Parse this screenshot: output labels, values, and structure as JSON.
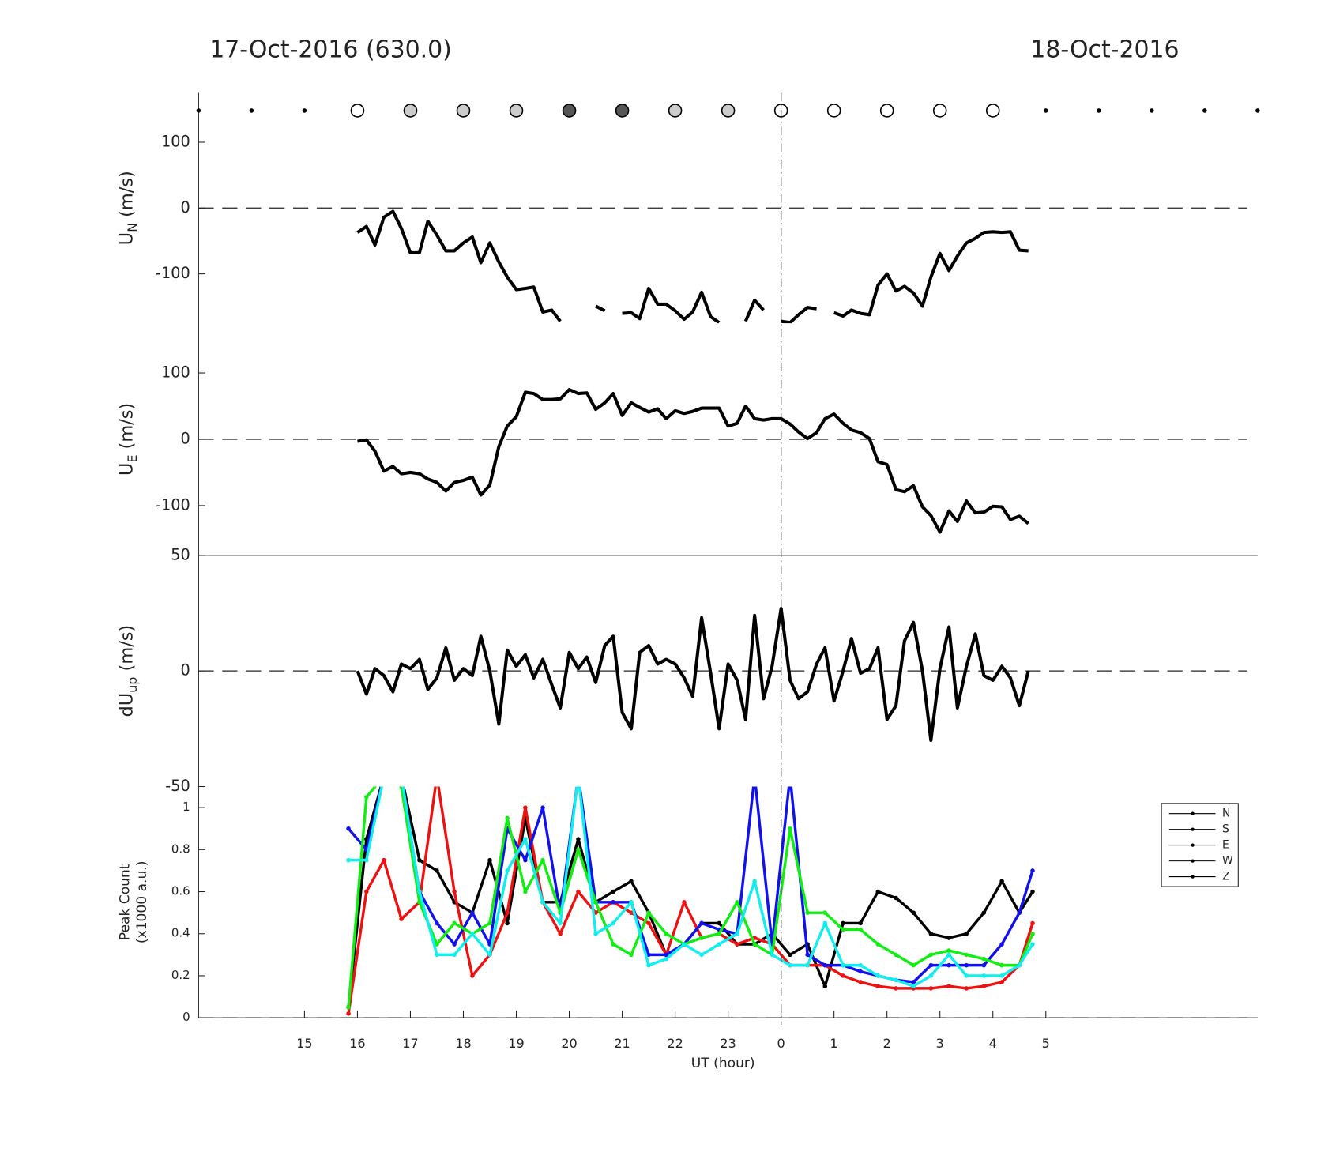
{
  "chart_data": [
    {
      "type": "line",
      "title": "17-Oct-2016 (630.0)",
      "title_right": "18-Oct-2016",
      "ylabel": "U",
      "ylabel_sub": "N",
      "ylabel_unit": " (m/s)",
      "ylim": [
        -175,
        175
      ],
      "yticks": [
        -100,
        0,
        100
      ],
      "zero_line": true,
      "sky": {
        "x": [
          -11,
          -10,
          -9,
          -8,
          -7,
          -6,
          -5,
          -4,
          -3,
          -2,
          -1,
          0,
          1,
          2,
          3,
          4,
          5,
          6,
          7,
          8,
          9
        ],
        "kind": [
          "dot",
          "dot",
          "dot",
          "open",
          "light",
          "light",
          "light",
          "dark",
          "dark",
          "light",
          "light",
          "open",
          "open",
          "open",
          "open",
          "open",
          "dot",
          "dot",
          "dot",
          "dot",
          "dot"
        ]
      },
      "x": [
        -8,
        -7.83,
        -7.67,
        -7.5,
        -7.33,
        -7.17,
        -7,
        -6.83,
        -6.67,
        -6.5,
        -6.33,
        -6.17,
        -6,
        -5.83,
        -5.67,
        -5.5,
        -5.33,
        -5.17,
        -5,
        -4.83,
        -4.67,
        -4.5,
        -4.33,
        -4.17,
        -4,
        -3.83,
        -3.67,
        -3.5,
        -3.33,
        -3.17,
        -3,
        -2.83,
        -2.67,
        -2.5,
        -2.33,
        -2.17,
        -2,
        -1.83,
        -1.67,
        -1.5,
        -1.33,
        -1.17,
        -1,
        -0.83,
        -0.67,
        -0.5,
        -0.33,
        -0.17,
        0,
        0.17,
        0.33,
        0.5,
        0.67,
        0.83,
        1,
        1.17,
        1.33,
        1.5,
        1.67,
        1.83,
        2,
        2.17,
        2.33,
        2.5,
        2.67,
        2.83,
        3,
        3.17,
        3.33,
        3.5,
        3.67,
        3.83,
        4,
        4.17,
        4.33,
        4.5,
        4.67
      ],
      "series": [
        {
          "color": "#000000",
          "values": [
            -37,
            -28,
            -56,
            -14,
            -5,
            -31,
            -68,
            -68,
            -20,
            -41,
            -65,
            -65,
            -53,
            -44,
            -83,
            -53,
            -82,
            -105,
            -124,
            -122,
            -120,
            -158,
            -155,
            -172,
            null,
            null,
            null,
            -149,
            -156,
            null,
            -160,
            -159,
            -168,
            -122,
            -146,
            -146,
            -156,
            -169,
            -158,
            -128,
            -165,
            -174,
            null,
            null,
            -172,
            -140,
            -155,
            null,
            -172,
            -174,
            -162,
            -151,
            -153,
            null,
            -159,
            -164,
            -155,
            -160,
            -162,
            -117,
            -100,
            -126,
            -119,
            -129,
            -149,
            -105,
            -69,
            -95,
            -73,
            -53,
            -46,
            -37,
            -36,
            -37,
            -36,
            -64,
            -65
          ]
        }
      ]
    },
    {
      "type": "line",
      "ylabel": "U",
      "ylabel_sub": "E",
      "ylabel_unit": " (m/s)",
      "ylim": [
        -175,
        175
      ],
      "yticks": [
        -100,
        0,
        100
      ],
      "zero_line": true,
      "x": [
        -8,
        -7.83,
        -7.67,
        -7.5,
        -7.33,
        -7.17,
        -7,
        -6.83,
        -6.67,
        -6.5,
        -6.33,
        -6.17,
        -6,
        -5.83,
        -5.67,
        -5.5,
        -5.33,
        -5.17,
        -5,
        -4.83,
        -4.67,
        -4.5,
        -4.33,
        -4.17,
        -4,
        -3.83,
        -3.67,
        -3.5,
        -3.33,
        -3.17,
        -3,
        -2.83,
        -2.67,
        -2.5,
        -2.33,
        -2.17,
        -2,
        -1.83,
        -1.67,
        -1.5,
        -1.33,
        -1.17,
        -1,
        -0.83,
        -0.67,
        -0.5,
        -0.33,
        -0.17,
        0,
        0.17,
        0.33,
        0.5,
        0.67,
        0.83,
        1,
        1.17,
        1.33,
        1.5,
        1.67,
        1.83,
        2,
        2.17,
        2.33,
        2.5,
        2.67,
        2.83,
        3,
        3.17,
        3.33,
        3.5,
        3.67,
        3.83,
        4,
        4.17,
        4.33,
        4.5,
        4.67
      ],
      "series": [
        {
          "color": "#000000",
          "values": [
            -3,
            -1,
            -18,
            -48,
            -41,
            -52,
            -50,
            -52,
            -60,
            -65,
            -78,
            -65,
            -62,
            -57,
            -84,
            -69,
            -11,
            20,
            34,
            71,
            69,
            60,
            60,
            61,
            75,
            69,
            70,
            45,
            55,
            69,
            36,
            55,
            48,
            41,
            46,
            31,
            43,
            39,
            42,
            47,
            47,
            47,
            20,
            24,
            50,
            31,
            29,
            31,
            31,
            23,
            11,
            1,
            10,
            31,
            38,
            24,
            14,
            10,
            1,
            -34,
            -38,
            -76,
            -79,
            -70,
            -102,
            -115,
            -140,
            -108,
            -124,
            -93,
            -111,
            -110,
            -101,
            -102,
            -121,
            -116,
            -127
          ]
        }
      ]
    },
    {
      "type": "line",
      "ylabel": "dU",
      "ylabel_sub": "up",
      "ylabel_unit": " (m/s)",
      "ylim": [
        -50,
        50
      ],
      "yticks": [
        -50,
        0,
        50
      ],
      "zero_line": true,
      "x": [
        -8,
        -7.83,
        -7.67,
        -7.5,
        -7.33,
        -7.17,
        -7,
        -6.83,
        -6.67,
        -6.5,
        -6.33,
        -6.17,
        -6,
        -5.83,
        -5.67,
        -5.5,
        -5.33,
        -5.17,
        -5,
        -4.83,
        -4.67,
        -4.5,
        -4.33,
        -4.17,
        -4,
        -3.83,
        -3.67,
        -3.5,
        -3.33,
        -3.17,
        -3,
        -2.83,
        -2.67,
        -2.5,
        -2.33,
        -2.17,
        -2,
        -1.83,
        -1.67,
        -1.5,
        -1.33,
        -1.17,
        -1,
        -0.83,
        -0.67,
        -0.5,
        -0.33,
        -0.17,
        0,
        0.17,
        0.33,
        0.5,
        0.67,
        0.83,
        1,
        1.17,
        1.33,
        1.5,
        1.67,
        1.83,
        2,
        2.17,
        2.33,
        2.5,
        2.67,
        2.83,
        3,
        3.17,
        3.33,
        3.5,
        3.67,
        3.83,
        4,
        4.17,
        4.33,
        4.5,
        4.67
      ],
      "series": [
        {
          "color": "#000000",
          "values": [
            0,
            -10,
            1,
            -2,
            -9,
            3,
            1,
            5,
            -8,
            -3,
            10,
            -4,
            1,
            -2,
            15,
            0,
            -23,
            9,
            2,
            7,
            -3,
            5,
            -6,
            -16,
            8,
            1,
            6,
            -5,
            11,
            15,
            -18,
            -25,
            8,
            11,
            3,
            5,
            3,
            -3,
            -11,
            23,
            -1,
            -25,
            3,
            -4,
            -21,
            24,
            -12,
            2,
            27,
            -4,
            -12,
            -9,
            3,
            10,
            -13,
            0,
            14,
            -1,
            1,
            10,
            -21,
            -15,
            13,
            21,
            0,
            -30,
            1,
            19,
            -16,
            2,
            16,
            -2,
            -4,
            2,
            -3,
            -15,
            0
          ]
        }
      ]
    },
    {
      "type": "line",
      "ylabel": "Peak Count",
      "ylabel2": "(x1000 a.u.)",
      "ylim": [
        0,
        1.1
      ],
      "yticks": [
        0,
        0.2,
        0.4,
        0.6,
        0.8,
        1
      ],
      "zero_line": true,
      "point_markers": true,
      "xlabel": "UT (hour)",
      "xlim": [
        -11,
        9
      ],
      "xticks": [
        {
          "value": -9,
          "label": "15"
        },
        {
          "value": -8,
          "label": "16"
        },
        {
          "value": -7,
          "label": "17"
        },
        {
          "value": -6,
          "label": "18"
        },
        {
          "value": -5,
          "label": "19"
        },
        {
          "value": -4,
          "label": "20"
        },
        {
          "value": -3,
          "label": "21"
        },
        {
          "value": -2,
          "label": "22"
        },
        {
          "value": -1,
          "label": "23"
        },
        0,
        1,
        2,
        3,
        4,
        5
      ],
      "vline_x": 0,
      "legend": "upper right",
      "legend_line_color": "#000000",
      "x": [
        -8.17,
        -7.83,
        -7.5,
        -7.17,
        -6.83,
        -6.5,
        -6.17,
        -5.83,
        -5.5,
        -5.17,
        -4.83,
        -4.5,
        -4.17,
        -3.83,
        -3.5,
        -3.17,
        -2.83,
        -2.5,
        -2.17,
        -1.83,
        -1.5,
        -1.17,
        -0.83,
        -0.5,
        -0.17,
        0.17,
        0.5,
        0.83,
        1.17,
        1.5,
        1.83,
        2.17,
        2.5,
        2.83,
        3.17,
        3.5,
        3.83,
        4.17,
        4.5,
        4.75
      ],
      "series": [
        {
          "name": "N",
          "color": "#000000",
          "values": [
            0.05,
            0.85,
            1.15,
            1.15,
            0.75,
            0.7,
            0.55,
            0.5,
            0.75,
            0.45,
            0.95,
            0.55,
            0.55,
            0.85,
            0.55,
            0.6,
            0.65,
            0.5,
            0.3,
            0.35,
            0.45,
            0.45,
            0.35,
            0.35,
            0.4,
            0.3,
            0.35,
            0.15,
            0.45,
            0.45,
            0.6,
            0.57,
            0.5,
            0.4,
            0.38,
            0.4,
            0.5,
            0.65,
            0.5,
            0.6
          ]
        },
        {
          "name": "S",
          "color": "#ee1111",
          "values": [
            0.02,
            0.6,
            0.75,
            0.47,
            0.55,
            1.15,
            0.6,
            0.2,
            0.3,
            0.5,
            1.0,
            0.55,
            0.4,
            0.6,
            0.5,
            0.55,
            0.5,
            0.45,
            0.3,
            0.55,
            0.38,
            0.4,
            0.35,
            0.38,
            0.35,
            0.25,
            0.25,
            0.25,
            0.2,
            0.17,
            0.15,
            0.14,
            0.14,
            0.14,
            0.15,
            0.14,
            0.15,
            0.17,
            0.25,
            0.45
          ]
        },
        {
          "name": "E",
          "color": "#1111ee",
          "values": [
            0.9,
            0.8,
            1.15,
            1.15,
            0.6,
            0.45,
            0.35,
            0.5,
            0.35,
            0.9,
            0.75,
            1.0,
            0.5,
            1.15,
            0.55,
            0.55,
            0.55,
            0.3,
            0.3,
            0.35,
            0.45,
            0.42,
            0.4,
            1.15,
            0.35,
            1.15,
            0.3,
            0.25,
            0.25,
            0.22,
            0.2,
            0.18,
            0.17,
            0.25,
            0.25,
            0.25,
            0.25,
            0.35,
            0.5,
            0.7
          ]
        },
        {
          "name": "W",
          "color": "#11ee11",
          "values": [
            0.05,
            1.05,
            1.15,
            1.1,
            0.55,
            0.35,
            0.45,
            0.4,
            0.45,
            0.95,
            0.6,
            0.75,
            0.5,
            0.8,
            0.55,
            0.35,
            0.3,
            0.5,
            0.4,
            0.35,
            0.38,
            0.4,
            0.55,
            0.35,
            0.3,
            0.9,
            0.5,
            0.5,
            0.42,
            0.42,
            0.35,
            0.3,
            0.25,
            0.3,
            0.32,
            0.3,
            0.28,
            0.25,
            0.25,
            0.4
          ]
        },
        {
          "name": "Z",
          "color": "#11eeee",
          "values": [
            0.75,
            0.75,
            1.15,
            1.15,
            0.6,
            0.3,
            0.3,
            0.4,
            0.3,
            0.7,
            0.85,
            0.55,
            0.45,
            1.15,
            0.4,
            0.45,
            0.55,
            0.25,
            0.28,
            0.35,
            0.3,
            0.35,
            0.4,
            0.65,
            0.3,
            0.25,
            0.25,
            0.45,
            0.25,
            0.25,
            0.2,
            0.18,
            0.15,
            0.2,
            0.3,
            0.2,
            0.2,
            0.2,
            0.25,
            0.35
          ]
        }
      ]
    }
  ]
}
